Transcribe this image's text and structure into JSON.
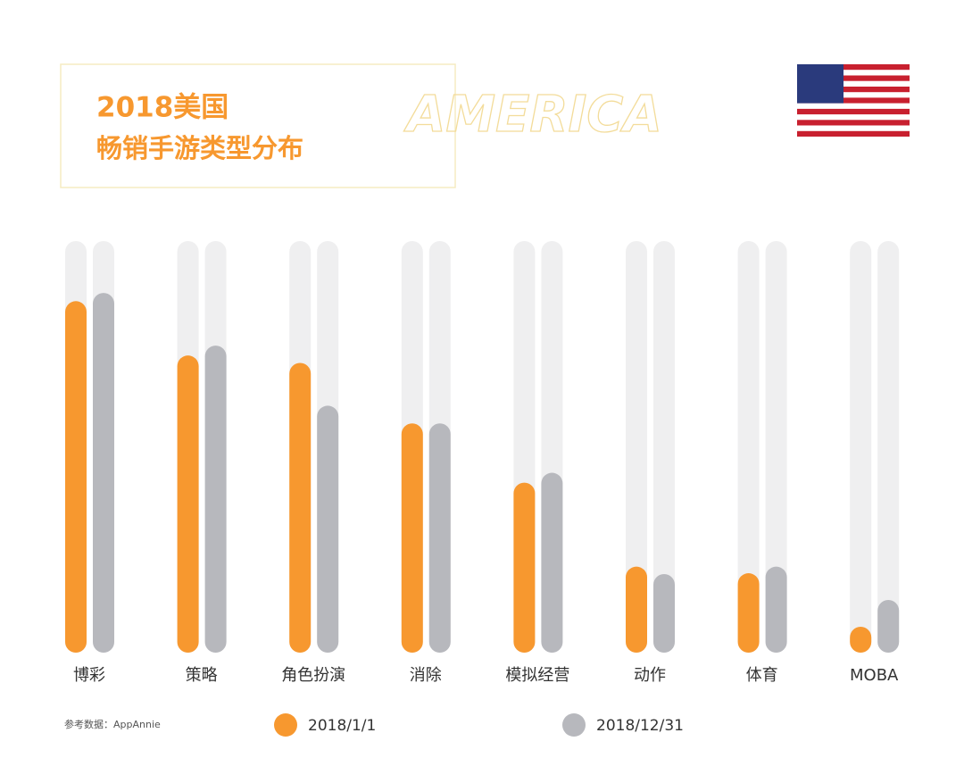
{
  "chart_data": {
    "type": "bar",
    "title": "2018美国",
    "subtitle": "畅销手游类型分布",
    "decoration": "AMERICA",
    "source": "参考数据：AppAnnie",
    "categories": [
      "博彩",
      "策略",
      "角色扮演",
      "消除",
      "模拟经营",
      "动作",
      "体育",
      "MOBA"
    ],
    "series": [
      {
        "name": "2018/1/1",
        "color": "#f7982f",
        "values": [
          85.4,
          72.2,
          70.4,
          55.7,
          41.3,
          20.9,
          19.3,
          6.3
        ]
      },
      {
        "name": "2018/12/31",
        "color": "#b7b8bd",
        "values": [
          87.4,
          74.6,
          60.0,
          55.7,
          43.7,
          19.1,
          20.9,
          12.8
        ]
      }
    ],
    "ylim": [
      0,
      100
    ],
    "track_color": "#efeff0"
  }
}
